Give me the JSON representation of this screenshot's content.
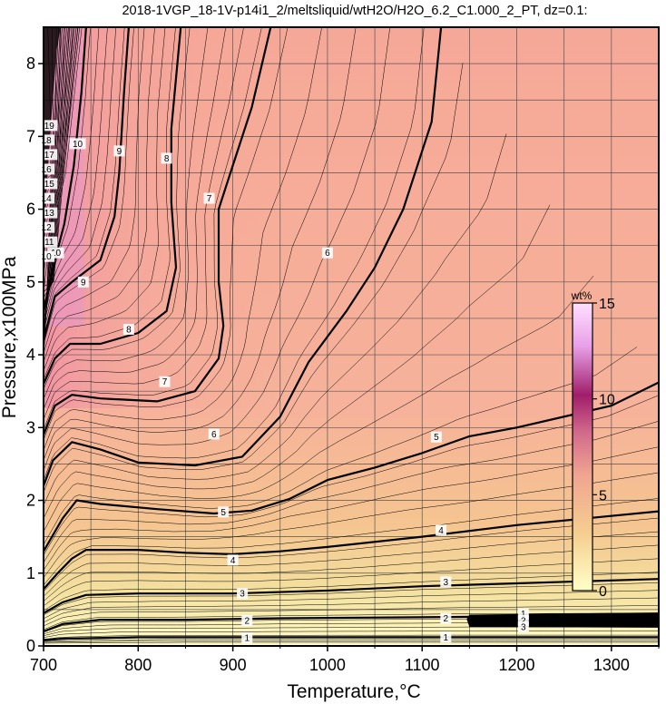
{
  "chart_data": {
    "type": "contour",
    "title": "2018-1VGP_18-1V-p14i1_2/meltsliquid/wtH2O/H2O_6.2_C1.000_2_PT, dz=0.1:",
    "xlabel": "Temperature,°C",
    "ylabel": "Pressure,x100MPa",
    "xlim": [
      700,
      1350
    ],
    "ylim": [
      0,
      8.5
    ],
    "x_ticks": [
      "700",
      "800",
      "900",
      "1000",
      "1100",
      "1200",
      "1300"
    ],
    "y_ticks": [
      "0",
      "1",
      "2",
      "3",
      "4",
      "5",
      "6",
      "7",
      "8"
    ],
    "x_tick_values": [
      700,
      800,
      900,
      1000,
      1100,
      1200,
      1300
    ],
    "y_tick_values": [
      0,
      1,
      2,
      3,
      4,
      5,
      6,
      7,
      8
    ],
    "grid": true,
    "contour_interval": 0.1,
    "major_contour_interval": 1,
    "major_contours": [
      {
        "level": 1,
        "label": "1",
        "points": [
          [
            700,
            0.08
          ],
          [
            720,
            0.1
          ],
          [
            800,
            0.12
          ],
          [
            900,
            0.12
          ],
          [
            1000,
            0.12
          ],
          [
            1100,
            0.12
          ],
          [
            1200,
            0.12
          ],
          [
            1350,
            0.12
          ]
        ],
        "labels": [
          [
            915,
            0.11
          ],
          [
            1125,
            0.12
          ]
        ]
      },
      {
        "level": 2,
        "label": "2",
        "points": [
          [
            700,
            0.2
          ],
          [
            720,
            0.3
          ],
          [
            760,
            0.36
          ],
          [
            850,
            0.36
          ],
          [
            950,
            0.38
          ],
          [
            1050,
            0.39
          ],
          [
            1150,
            0.4
          ],
          [
            1250,
            0.4
          ],
          [
            1350,
            0.4
          ]
        ],
        "labels": [
          [
            915,
            0.35
          ],
          [
            1125,
            0.38
          ]
        ]
      },
      {
        "level": 3,
        "label": "3",
        "points": [
          [
            700,
            0.45
          ],
          [
            720,
            0.6
          ],
          [
            745,
            0.7
          ],
          [
            800,
            0.72
          ],
          [
            900,
            0.72
          ],
          [
            1000,
            0.76
          ],
          [
            1100,
            0.82
          ],
          [
            1200,
            0.86
          ],
          [
            1350,
            0.92
          ]
        ],
        "labels": [
          [
            910,
            0.72
          ],
          [
            1125,
            0.88
          ]
        ]
      },
      {
        "level": 4,
        "label": "4",
        "points": [
          [
            700,
            0.78
          ],
          [
            715,
            1.0
          ],
          [
            730,
            1.2
          ],
          [
            745,
            1.32
          ],
          [
            800,
            1.32
          ],
          [
            850,
            1.28
          ],
          [
            900,
            1.26
          ],
          [
            950,
            1.3
          ],
          [
            1000,
            1.36
          ],
          [
            1100,
            1.5
          ],
          [
            1200,
            1.66
          ],
          [
            1350,
            1.85
          ]
        ],
        "labels": [
          [
            900,
            1.18
          ],
          [
            1120,
            1.59
          ]
        ]
      },
      {
        "level": 5,
        "label": "5",
        "points": [
          [
            700,
            1.3
          ],
          [
            720,
            1.75
          ],
          [
            735,
            2.0
          ],
          [
            760,
            1.95
          ],
          [
            820,
            1.88
          ],
          [
            880,
            1.82
          ],
          [
            920,
            1.86
          ],
          [
            960,
            2.02
          ],
          [
            1000,
            2.28
          ],
          [
            1050,
            2.45
          ],
          [
            1100,
            2.65
          ],
          [
            1150,
            2.88
          ],
          [
            1200,
            3.0
          ],
          [
            1300,
            3.3
          ],
          [
            1350,
            3.62
          ]
        ],
        "labels": [
          [
            890,
            1.84
          ],
          [
            1115,
            2.87
          ]
        ]
      },
      {
        "level": 6,
        "label": "6",
        "points": [
          [
            700,
            2.2
          ],
          [
            710,
            2.55
          ],
          [
            730,
            2.8
          ],
          [
            760,
            2.7
          ],
          [
            800,
            2.52
          ],
          [
            860,
            2.48
          ],
          [
            910,
            2.6
          ],
          [
            950,
            3.15
          ],
          [
            980,
            3.9
          ],
          [
            1020,
            4.6
          ],
          [
            1050,
            5.2
          ],
          [
            1080,
            6.0
          ],
          [
            1110,
            7.2
          ],
          [
            1120,
            8.5
          ]
        ],
        "labels": [
          [
            880,
            2.91
          ],
          [
            1000,
            5.4
          ]
        ]
      },
      {
        "level": 7,
        "label": "7",
        "points": [
          [
            700,
            2.9
          ],
          [
            712,
            3.3
          ],
          [
            730,
            3.45
          ],
          [
            760,
            3.4
          ],
          [
            820,
            3.36
          ],
          [
            860,
            3.5
          ],
          [
            885,
            3.95
          ],
          [
            890,
            4.4
          ],
          [
            885,
            5.0
          ],
          [
            885,
            6.0
          ],
          [
            900,
            6.6
          ],
          [
            920,
            7.4
          ],
          [
            940,
            8.5
          ]
        ],
        "labels": [
          [
            828,
            3.63
          ],
          [
            875,
            6.15
          ]
        ]
      },
      {
        "level": 8,
        "label": "8",
        "points": [
          [
            700,
            3.6
          ],
          [
            712,
            3.95
          ],
          [
            728,
            4.15
          ],
          [
            760,
            4.15
          ],
          [
            800,
            4.3
          ],
          [
            830,
            4.6
          ],
          [
            840,
            5.2
          ],
          [
            835,
            6.1
          ],
          [
            835,
            7.1
          ],
          [
            845,
            8.5
          ]
        ],
        "labels": [
          [
            790,
            4.35
          ],
          [
            830,
            6.7
          ]
        ]
      },
      {
        "level": 9,
        "label": "9",
        "points": [
          [
            700,
            4.2
          ],
          [
            712,
            4.8
          ],
          [
            730,
            5.0
          ],
          [
            760,
            5.3
          ],
          [
            775,
            5.9
          ],
          [
            780,
            6.5
          ],
          [
            785,
            7.6
          ],
          [
            790,
            8.5
          ]
        ],
        "labels": [
          [
            742,
            5.0
          ],
          [
            780,
            6.8
          ]
        ]
      },
      {
        "level": 10,
        "label": "10",
        "points": [
          [
            700,
            4.6
          ],
          [
            712,
            5.3
          ],
          [
            722,
            5.8
          ],
          [
            732,
            6.6
          ],
          [
            740,
            7.6
          ],
          [
            745,
            8.5
          ]
        ],
        "labels": [
          [
            713,
            5.4
          ],
          [
            736,
            6.9
          ]
        ]
      }
    ],
    "minor_contours": [
      0.3,
      0.5,
      0.7,
      0.9,
      1.1,
      1.3,
      1.5,
      1.7,
      1.9,
      2.1,
      2.3,
      2.5,
      2.7,
      2.9,
      3.1,
      3.3,
      3.5,
      3.7,
      3.9,
      4.1,
      4.3,
      4.5,
      4.7,
      4.9,
      5.1,
      5.3,
      5.5,
      5.7,
      5.9,
      6.1,
      6.3,
      6.5,
      6.7,
      6.9,
      7.1,
      7.3,
      7.5,
      7.7,
      7.9,
      8.1,
      8.3,
      8.5,
      8.7,
      8.9,
      9.1,
      9.3,
      9.5,
      9.7,
      9.9
    ],
    "dense_labels_left": [
      "10",
      "11",
      "12",
      "13",
      "14",
      "15",
      "16",
      "17",
      "18",
      "19"
    ],
    "dense_labels_right": [
      "1",
      "2",
      "3"
    ],
    "colorbar": {
      "title": "wt%",
      "ticks": [
        "0",
        "5",
        "10",
        "15"
      ],
      "tick_values": [
        0,
        5,
        10,
        15
      ],
      "range": [
        0,
        15
      ],
      "colors": [
        "#ffffc8",
        "#f5ce90",
        "#f0a590",
        "#d26a8c",
        "#a01e6a",
        "#e8a0e8",
        "#ffe0ff"
      ]
    }
  }
}
